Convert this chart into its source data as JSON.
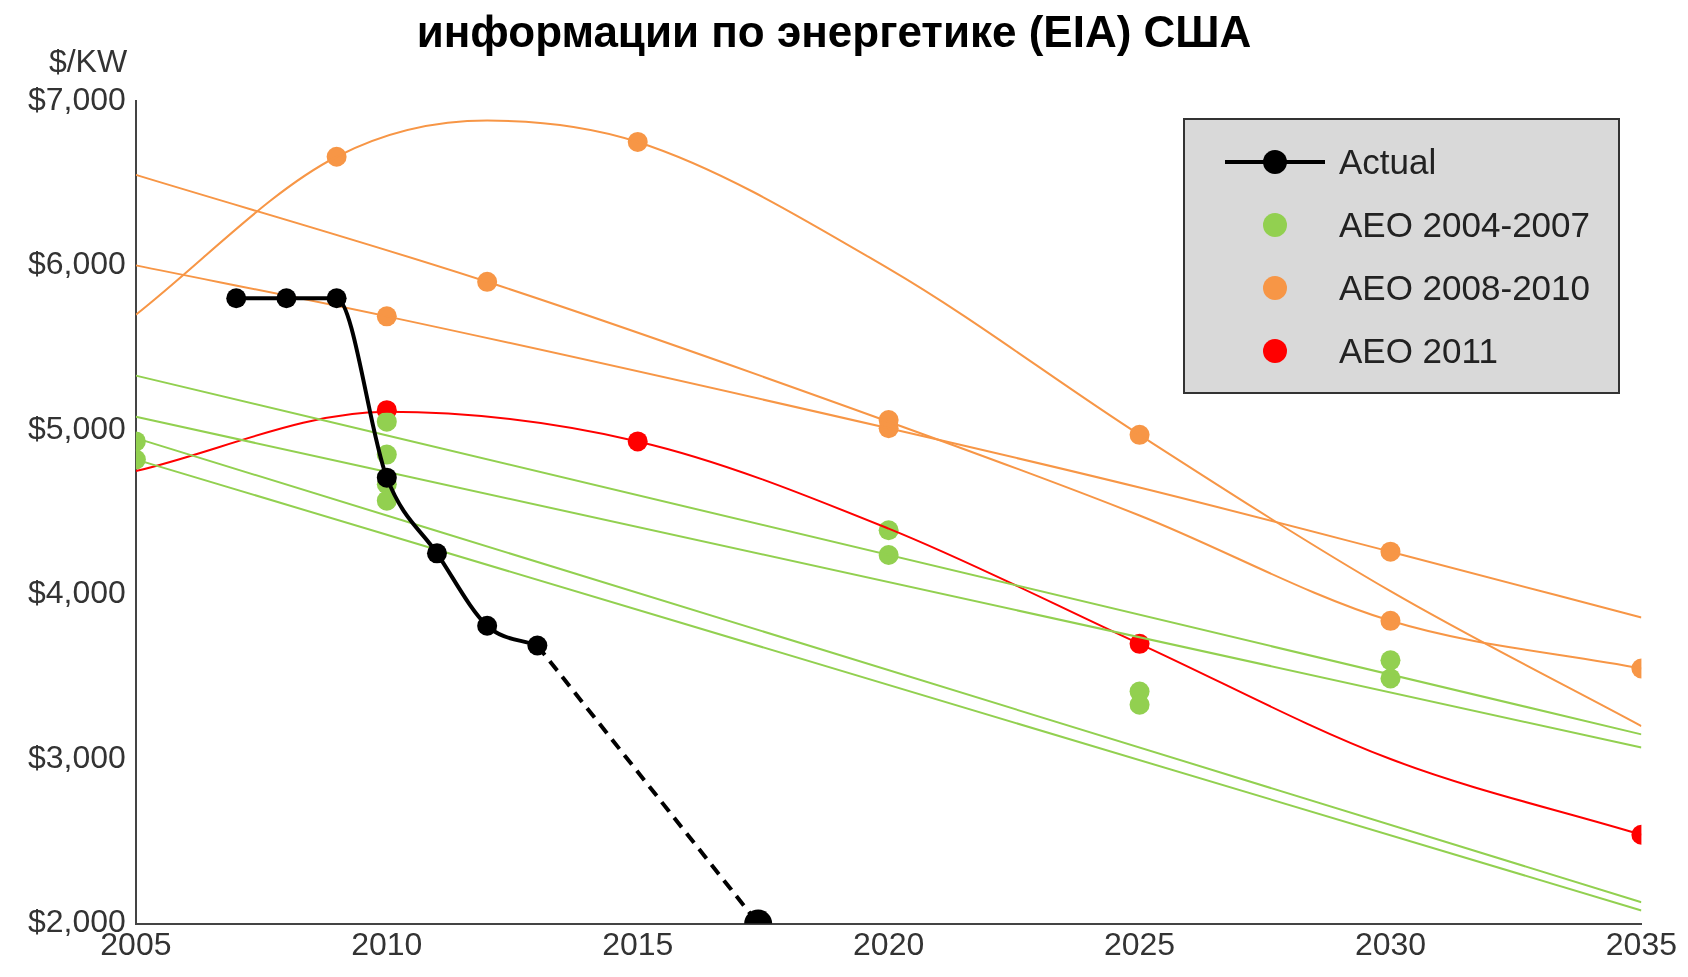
{
  "chart_data": {
    "type": "line",
    "title": "информации по энергетике (EIA) США",
    "ylabel": "$/KW",
    "xlim": [
      2005,
      2035
    ],
    "xticks": [
      2005,
      2010,
      2015,
      2020,
      2025,
      2030,
      2035
    ],
    "ylim": [
      2000,
      7000
    ],
    "yticks": [
      {
        "value": 2000,
        "label": "$2,000"
      },
      {
        "value": 3000,
        "label": "$3,000"
      },
      {
        "value": 4000,
        "label": "$4,000"
      },
      {
        "value": 5000,
        "label": "$5,000"
      },
      {
        "value": 6000,
        "label": "$6,000"
      },
      {
        "value": 7000,
        "label": "$7,000"
      }
    ],
    "grid": false,
    "legend": "top right",
    "series": [
      {
        "name": "Actual",
        "type": "line",
        "color": "#000000",
        "marker": "circle",
        "line_style": "solid",
        "x": [
          2007,
          2008,
          2009,
          2010,
          2011,
          2012,
          2013
        ],
        "values": [
          5800,
          5800,
          5800,
          4710,
          4250,
          3810,
          3690
        ]
      },
      {
        "type": "line",
        "color": "#000000",
        "marker": "none",
        "line_style": "dashed",
        "x": [
          2013,
          2017.4
        ],
        "values": [
          3690,
          2000
        ]
      },
      {
        "type": "scatter",
        "color": "#000000",
        "marker": "circle",
        "x": [
          2017.4
        ],
        "values": [
          2000
        ]
      },
      {
        "type": "line",
        "color": "#92d050",
        "marker": "none",
        "line_style": "solid",
        "x": [
          2005,
          2035
        ],
        "values": [
          5330,
          3150
        ]
      },
      {
        "type": "line",
        "color": "#92d050",
        "marker": "none",
        "line_style": "solid",
        "x": [
          2005,
          2035
        ],
        "values": [
          5080,
          3070
        ]
      },
      {
        "type": "line",
        "color": "#92d050",
        "marker": "none",
        "line_style": "solid",
        "x": [
          2005,
          2035
        ],
        "values": [
          4950,
          2130
        ]
      },
      {
        "type": "line",
        "color": "#92d050",
        "marker": "none",
        "line_style": "solid",
        "x": [
          2005,
          2035
        ],
        "values": [
          4820,
          2080
        ]
      },
      {
        "type": "line",
        "color": "#f79646",
        "marker": "none",
        "line_style": "solid",
        "x": [
          2005,
          2009,
          2012,
          2015,
          2020,
          2025,
          2030,
          2035
        ],
        "values": [
          5700,
          6660,
          6880,
          6750,
          5980,
          4970,
          4020,
          3200
        ]
      },
      {
        "type": "line",
        "color": "#f79646",
        "marker": "none",
        "line_style": "solid",
        "x": [
          2005,
          2012,
          2020,
          2025,
          2030,
          2035
        ],
        "values": [
          6550,
          5900,
          5050,
          4480,
          3840,
          3550
        ]
      },
      {
        "type": "line",
        "color": "#f79646",
        "marker": "none",
        "line_style": "solid",
        "x": [
          2005,
          2010,
          2020,
          2025,
          2030,
          2035
        ],
        "values": [
          6000,
          5690,
          5010,
          4650,
          4260,
          3860
        ]
      },
      {
        "type": "line",
        "color": "#ff0000",
        "marker": "none",
        "line_style": "solid",
        "x": [
          2005,
          2010,
          2015,
          2020,
          2025,
          2030,
          2035
        ],
        "values": [
          4750,
          5110,
          4930,
          4400,
          3700,
          3000,
          2540
        ]
      },
      {
        "name": "AEO 2004-2007",
        "type": "scatter",
        "color": "#92d050",
        "marker": "circle",
        "x": [
          2005,
          2005,
          2010,
          2010,
          2010,
          2010,
          2020,
          2020,
          2025,
          2025,
          2030,
          2030
        ],
        "values": [
          4930,
          4820,
          5050,
          4850,
          4670,
          4570,
          4390,
          4240,
          3410,
          3330,
          3600,
          3490
        ]
      },
      {
        "name": "AEO 2008-2010",
        "type": "scatter",
        "color": "#f79646",
        "marker": "circle",
        "x": [
          2009,
          2010,
          2012,
          2015,
          2020,
          2020,
          2025,
          2030,
          2030,
          2035
        ],
        "values": [
          6660,
          5690,
          5900,
          6750,
          5060,
          5010,
          4970,
          4260,
          3840,
          3550
        ]
      },
      {
        "name": "AEO 2011",
        "type": "scatter",
        "color": "#ff0000",
        "marker": "circle",
        "x": [
          2010,
          2015,
          2025,
          2035
        ],
        "values": [
          5120,
          4930,
          3700,
          2540
        ]
      }
    ]
  }
}
